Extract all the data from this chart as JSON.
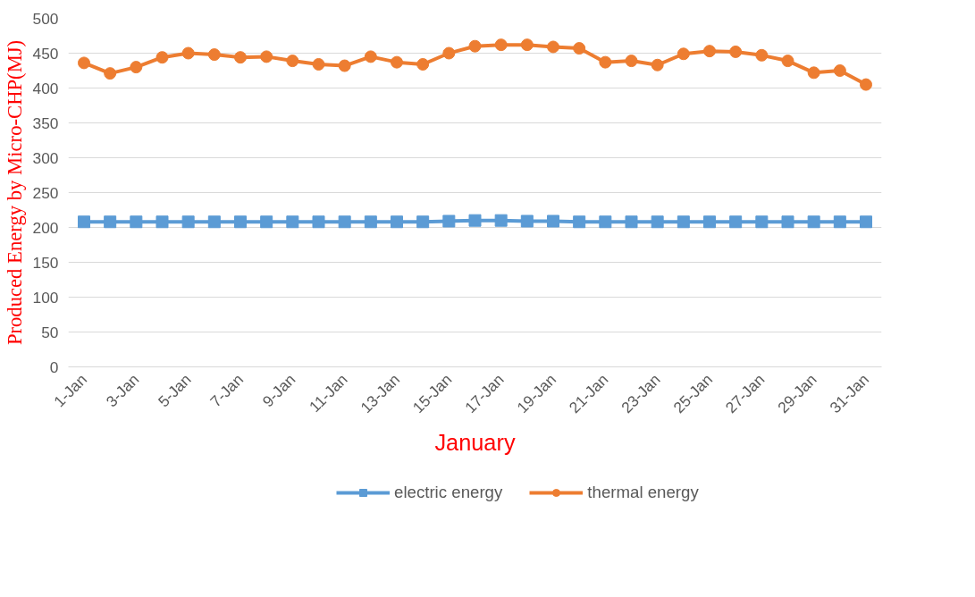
{
  "chart_data": {
    "type": "line",
    "xlabel": "January",
    "ylabel": "Produced Energy by Micro-CHP(MJ)",
    "categories": [
      "1-Jan",
      null,
      "3-Jan",
      null,
      "5-Jan",
      null,
      "7-Jan",
      null,
      "9-Jan",
      null,
      "11-Jan",
      null,
      "13-Jan",
      null,
      "15-Jan",
      null,
      "17-Jan",
      null,
      "19-Jan",
      null,
      "21-Jan",
      null,
      "23-Jan",
      null,
      "25-Jan",
      null,
      "27-Jan",
      null,
      "29-Jan",
      null,
      "31-Jan"
    ],
    "series": [
      {
        "name": "electric energy",
        "color": "#5b9bd5",
        "marker": "square",
        "values": [
          208,
          208,
          208,
          208,
          208,
          208,
          208,
          208,
          208,
          208,
          208,
          208,
          208,
          208,
          209,
          210,
          210,
          209,
          209,
          208,
          208,
          208,
          208,
          208,
          208,
          208,
          208,
          208,
          208,
          208,
          208
        ]
      },
      {
        "name": "thermal energy",
        "color": "#ed7d31",
        "marker": "circle",
        "values": [
          436,
          421,
          430,
          444,
          450,
          448,
          444,
          445,
          439,
          434,
          432,
          445,
          437,
          434,
          450,
          460,
          462,
          462,
          459,
          457,
          437,
          439,
          433,
          449,
          453,
          452,
          447,
          439,
          422,
          425,
          405
        ]
      }
    ],
    "ylim": [
      0,
      500
    ],
    "yticks": [
      0,
      50,
      100,
      150,
      200,
      250,
      300,
      350,
      400,
      450,
      500
    ],
    "grid": "y",
    "legend": "bottom",
    "line_style": "solid"
  }
}
